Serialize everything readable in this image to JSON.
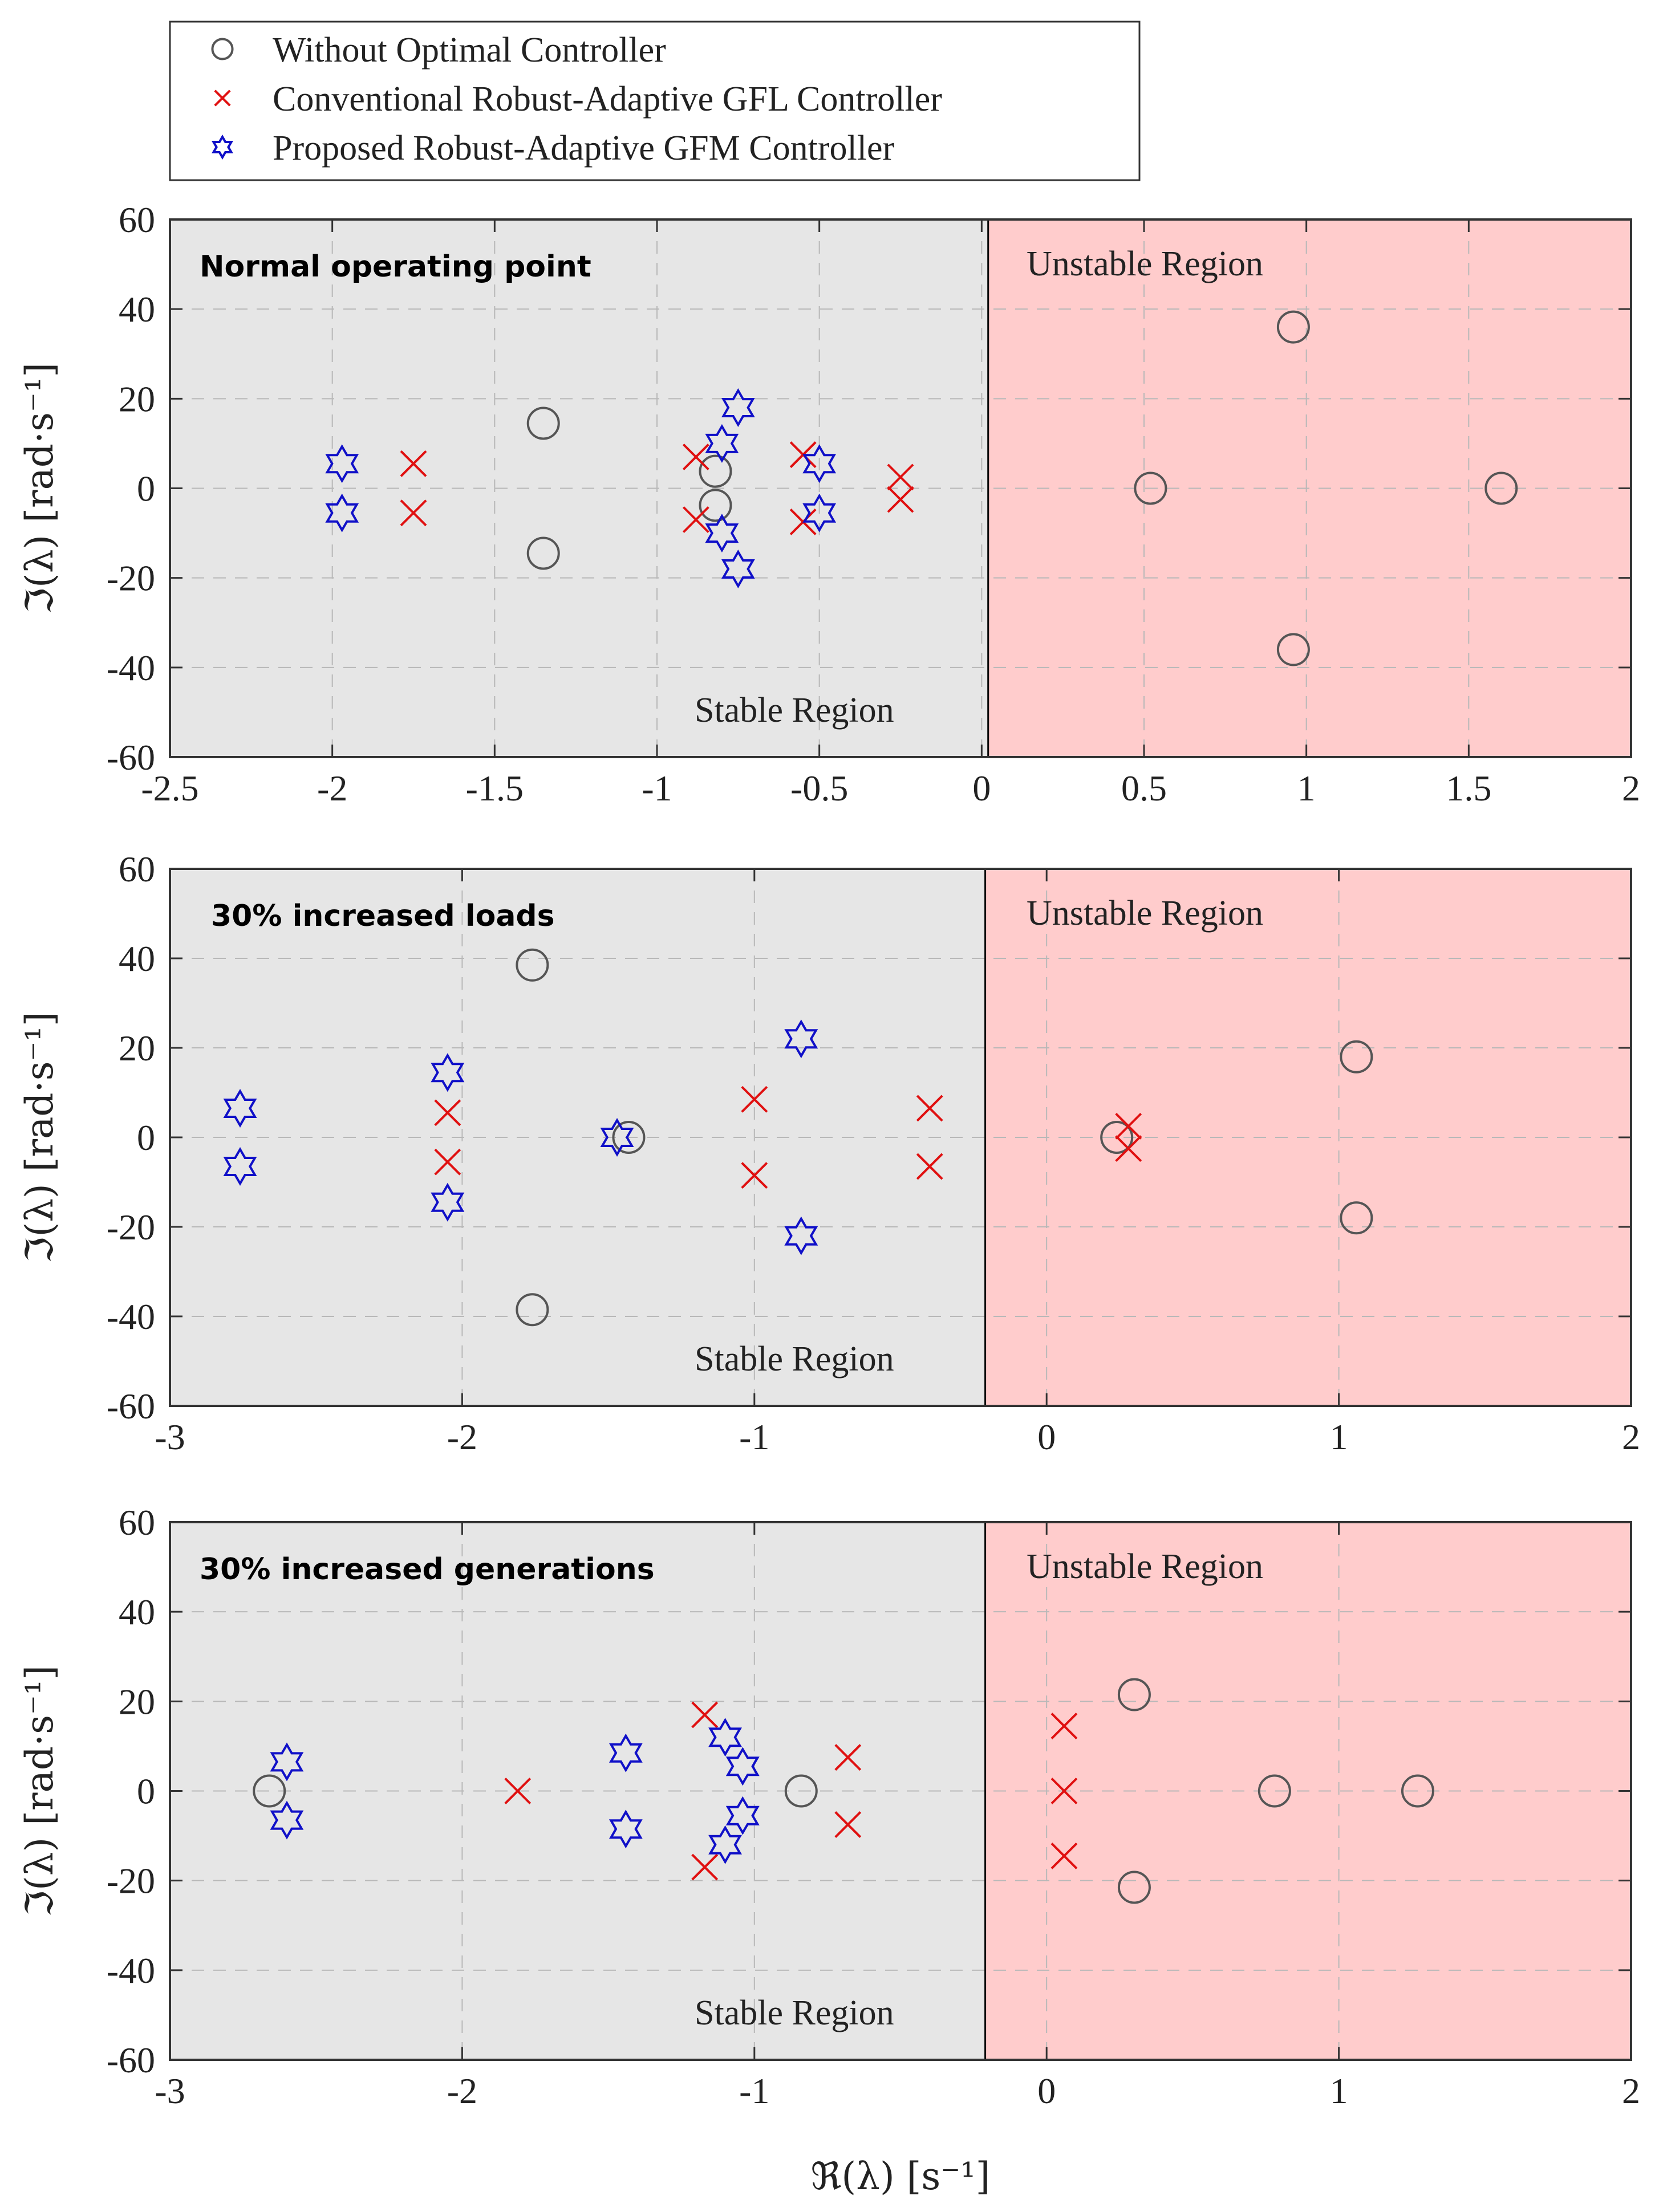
{
  "colors": {
    "stable": "#e6e6e6",
    "unstable": "#ffcccc",
    "circle": "#555555",
    "cross": "#e01010",
    "star": "#1010c8"
  },
  "legend": {
    "items": [
      {
        "label": "Without Optimal Controller",
        "marker": "circle"
      },
      {
        "label": "Conventional Robust-Adaptive GFL Controller",
        "marker": "cross"
      },
      {
        "label": "Proposed Robust-Adaptive GFM Controller",
        "marker": "star"
      }
    ]
  },
  "chart_data": [
    {
      "type": "scatter",
      "title": "Normal operating point",
      "xlabel": "ℜ(λ) [s⁻¹]",
      "ylabel": "ℑ(λ) [rad·s⁻¹]",
      "xlim": [
        -2.5,
        2
      ],
      "ylim": [
        -60,
        60
      ],
      "xticks": [
        -2.5,
        -2,
        -1.5,
        -1,
        -0.5,
        0,
        0.5,
        1,
        1.5,
        2
      ],
      "xtick_labels": [
        "-2.5",
        "-2",
        "-1.5",
        "-1",
        "-0.5",
        "0",
        "0.5",
        "1",
        "1.5",
        "2"
      ],
      "yticks": [
        -60,
        -40,
        -20,
        0,
        20,
        40,
        60
      ],
      "ytick_labels": [
        "-60",
        "-40",
        "-20",
        "0",
        "20",
        "40",
        "60"
      ],
      "boundary_x": 0.02,
      "stable_label": "Stable Region",
      "unstable_label": "Unstable Region",
      "series": [
        {
          "name": "Without Optimal Controller",
          "marker": "circle",
          "points": [
            [
              -1.35,
              14.5
            ],
            [
              -1.35,
              -14.5
            ],
            [
              -0.82,
              3.8
            ],
            [
              -0.82,
              -3.8
            ],
            [
              0.52,
              0
            ],
            [
              0.96,
              36
            ],
            [
              0.96,
              -36
            ],
            [
              1.6,
              0
            ]
          ]
        },
        {
          "name": "Conventional Robust-Adaptive GFL Controller",
          "marker": "cross",
          "points": [
            [
              -1.75,
              5.5
            ],
            [
              -1.75,
              -5.5
            ],
            [
              -0.88,
              7
            ],
            [
              -0.88,
              -7
            ],
            [
              -0.55,
              7.5
            ],
            [
              -0.55,
              -7.5
            ],
            [
              -0.25,
              2.5
            ],
            [
              -0.25,
              -2.5
            ]
          ]
        },
        {
          "name": "Proposed Robust-Adaptive GFM Controller",
          "marker": "star",
          "points": [
            [
              -1.97,
              5.5
            ],
            [
              -1.97,
              -5.5
            ],
            [
              -0.8,
              10
            ],
            [
              -0.8,
              -10
            ],
            [
              -0.75,
              18
            ],
            [
              -0.75,
              -18
            ],
            [
              -0.5,
              5.5
            ],
            [
              -0.5,
              -5.5
            ]
          ]
        }
      ]
    },
    {
      "type": "scatter",
      "title": "30% increased loads",
      "xlabel": "ℜ(λ) [s⁻¹]",
      "ylabel": "ℑ(λ) [rad·s⁻¹]",
      "xlim": [
        -3,
        2
      ],
      "ylim": [
        -60,
        60
      ],
      "xticks": [
        -3,
        -2,
        -1,
        0,
        1,
        2
      ],
      "xtick_labels": [
        "-3",
        "-2",
        "-1",
        "0",
        "1",
        "2"
      ],
      "yticks": [
        -60,
        -40,
        -20,
        0,
        20,
        40,
        60
      ],
      "ytick_labels": [
        "-60",
        "-40",
        "-20",
        "0",
        "20",
        "40",
        "60"
      ],
      "boundary_x": -0.21,
      "stable_label": "Stable Region",
      "unstable_label": "Unstable Region",
      "series": [
        {
          "name": "Without Optimal Controller",
          "marker": "circle",
          "points": [
            [
              -1.76,
              38.5
            ],
            [
              -1.76,
              -38.5
            ],
            [
              -1.43,
              0
            ],
            [
              0.24,
              0
            ],
            [
              1.06,
              18
            ],
            [
              1.06,
              -18
            ]
          ]
        },
        {
          "name": "Conventional Robust-Adaptive GFL Controller",
          "marker": "cross",
          "points": [
            [
              -2.05,
              5.5
            ],
            [
              -2.05,
              -5.5
            ],
            [
              -1.0,
              8.5
            ],
            [
              -1.0,
              -8.5
            ],
            [
              -0.4,
              6.5
            ],
            [
              -0.4,
              -6.5
            ],
            [
              0.28,
              2.5
            ],
            [
              0.28,
              -2.5
            ]
          ]
        },
        {
          "name": "Proposed Robust-Adaptive GFM Controller",
          "marker": "star",
          "points": [
            [
              -2.76,
              6.5
            ],
            [
              -2.76,
              -6.5
            ],
            [
              -2.05,
              14.5
            ],
            [
              -2.05,
              -14.5
            ],
            [
              -1.47,
              0
            ],
            [
              -0.84,
              22
            ],
            [
              -0.84,
              -22
            ]
          ]
        }
      ]
    },
    {
      "type": "scatter",
      "title": "30% increased generations",
      "xlabel": "ℜ(λ) [s⁻¹]",
      "ylabel": "ℑ(λ) [rad·s⁻¹]",
      "xlim": [
        -3,
        2
      ],
      "ylim": [
        -60,
        60
      ],
      "xticks": [
        -3,
        -2,
        -1,
        0,
        1,
        2
      ],
      "xtick_labels": [
        "-3",
        "-2",
        "-1",
        "0",
        "1",
        "2"
      ],
      "yticks": [
        -60,
        -40,
        -20,
        0,
        20,
        40,
        60
      ],
      "ytick_labels": [
        "-60",
        "-40",
        "-20",
        "0",
        "20",
        "40",
        "60"
      ],
      "boundary_x": -0.21,
      "stable_label": "Stable Region",
      "unstable_label": "Unstable Region",
      "series": [
        {
          "name": "Without Optimal Controller",
          "marker": "circle",
          "points": [
            [
              -2.66,
              0
            ],
            [
              -0.84,
              0
            ],
            [
              0.3,
              21.5
            ],
            [
              0.3,
              -21.5
            ],
            [
              0.78,
              0
            ],
            [
              1.27,
              0
            ]
          ]
        },
        {
          "name": "Conventional Robust-Adaptive GFL Controller",
          "marker": "cross",
          "points": [
            [
              -1.81,
              0
            ],
            [
              -1.17,
              17
            ],
            [
              -1.17,
              -17
            ],
            [
              -0.68,
              7.5
            ],
            [
              -0.68,
              -7.5
            ],
            [
              0.06,
              14.5
            ],
            [
              0.06,
              0
            ],
            [
              0.06,
              -14.5
            ]
          ]
        },
        {
          "name": "Proposed Robust-Adaptive GFM Controller",
          "marker": "star",
          "points": [
            [
              -2.6,
              6.5
            ],
            [
              -2.6,
              -6.5
            ],
            [
              -1.44,
              8.5
            ],
            [
              -1.44,
              -8.5
            ],
            [
              -1.1,
              12
            ],
            [
              -1.1,
              -12
            ],
            [
              -1.04,
              5.5
            ],
            [
              -1.04,
              -5.5
            ]
          ]
        }
      ]
    }
  ]
}
